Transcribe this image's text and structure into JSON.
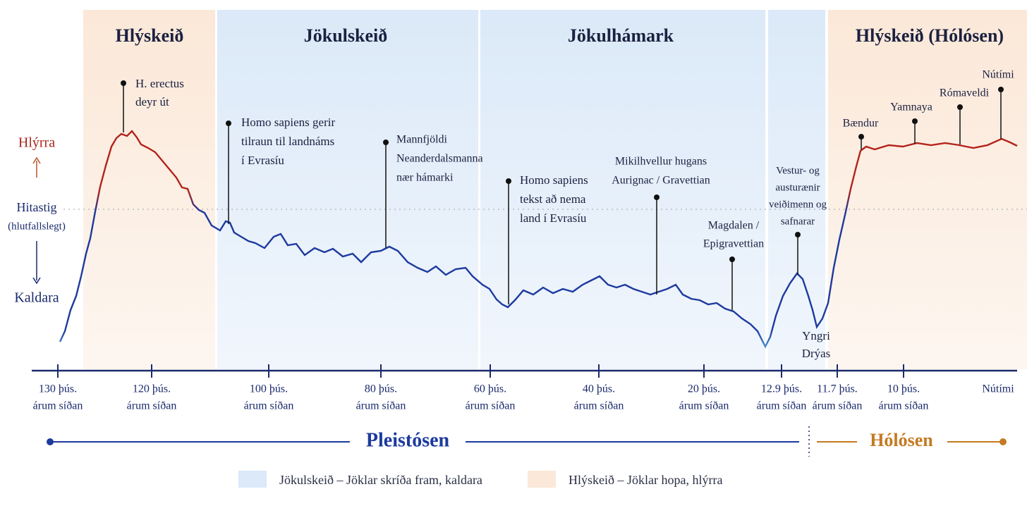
{
  "periods": [
    "Hlýskeið",
    "Jökulskeið",
    "Jökulhámark",
    "Hlýskeið (Hólósen)"
  ],
  "y_axis": {
    "top": "Hlýrra",
    "middle": "Hitastig",
    "middle_sub": "(hlutfallslegt)",
    "bottom": "Kaldara"
  },
  "annotations": [
    [
      "H. erectus",
      "deyr út"
    ],
    [
      "Homo sapiens gerir",
      "tilraun til landnáms",
      "í Evrasíu"
    ],
    [
      "Mannfjöldi",
      "Neanderdalsmanna",
      "nær hámarki"
    ],
    [
      "Homo sapiens",
      "tekst að nema",
      "land í Evrasíu"
    ],
    [
      "Mikilhvellur hugans",
      "Aurignac / Gravettian"
    ],
    [
      "Magdalen /",
      "Epigravettian"
    ],
    [
      "Vestur- og",
      "austurænir",
      "veiðimenn og",
      "safnarar"
    ],
    [
      "Yngri",
      "Drýas"
    ],
    [
      "Bændur"
    ],
    [
      "Yamnaya"
    ],
    [
      "Rómaveldi"
    ],
    [
      "Nútími"
    ]
  ],
  "x_axis": {
    "ticks": [
      [
        "130 þús.",
        "árum síðan"
      ],
      [
        "120 þús.",
        "árum síðan"
      ],
      [
        "100 þús.",
        "árum síðan"
      ],
      [
        "80 þús.",
        "árum síðan"
      ],
      [
        "60 þús.",
        "árum síðan"
      ],
      [
        "40 þús.",
        "árum síðan"
      ],
      [
        "20 þús.",
        "árum síðan"
      ],
      [
        "12.9 þús.",
        "árum síðan"
      ],
      [
        "11.7 þús.",
        "árum síðan"
      ],
      [
        "10 þús.",
        "árum síðan"
      ],
      [
        "Nútími"
      ]
    ]
  },
  "eras": [
    "Pleistósen",
    "Hólósen"
  ],
  "legend": [
    "Jökulskeið – Jöklar skríða fram, kaldara",
    "Hlýskeið – Jöklar hopa, hlýrra"
  ]
}
